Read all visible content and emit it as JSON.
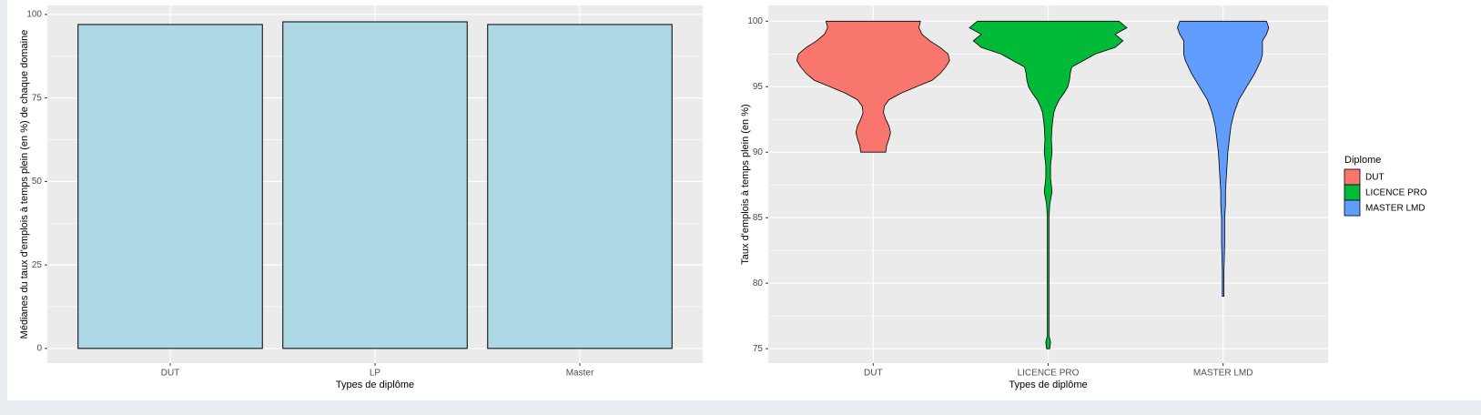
{
  "chart_data": [
    {
      "type": "bar",
      "x_label": "Types de diplôme",
      "y_label": "Médianes du taux d'emplois à temps plein (en %) de chaque domaine",
      "categories": [
        "DUT",
        "LP",
        "Master"
      ],
      "values": [
        97.0,
        97.8,
        97.0
      ],
      "color": "#add8e6",
      "ylim": [
        -4.4,
        102.7
      ],
      "yticks": [
        0,
        25,
        50,
        75,
        100
      ],
      "grid": true
    },
    {
      "type": "violin",
      "x_label": "Types de diplôme",
      "y_label": "Taux d'emplois à temps plein (en %)",
      "legend_title": "Diplome",
      "legend_position": "right",
      "ylim": [
        73.9,
        101.2
      ],
      "yticks": [
        75,
        80,
        85,
        90,
        95,
        100
      ],
      "grid": true,
      "series": [
        {
          "name": "DUT",
          "color": "#F8766D",
          "y": [
            90,
            90.5,
            91,
            91.5,
            92,
            92.5,
            93,
            93.5,
            94,
            94.5,
            95,
            95.5,
            96,
            96.5,
            97,
            97.5,
            98,
            98.5,
            99,
            99.5,
            100
          ],
          "width": [
            0.16,
            0.17,
            0.2,
            0.22,
            0.2,
            0.16,
            0.13,
            0.14,
            0.2,
            0.35,
            0.55,
            0.75,
            0.85,
            0.92,
            0.97,
            0.95,
            0.85,
            0.72,
            0.62,
            0.58,
            0.6
          ]
        },
        {
          "name": "LICENCE PRO",
          "color": "#00BA38",
          "y": [
            75,
            75.5,
            76,
            80,
            85,
            86,
            87,
            88,
            89,
            90,
            91,
            92,
            93,
            93.5,
            94,
            94.5,
            95,
            95.5,
            96,
            96.5,
            97,
            97.5,
            98,
            98.5,
            99,
            99.5,
            100
          ],
          "width": [
            0.02,
            0.03,
            0.01,
            0.01,
            0.01,
            0.02,
            0.05,
            0.03,
            0.03,
            0.05,
            0.04,
            0.05,
            0.07,
            0.1,
            0.14,
            0.2,
            0.25,
            0.27,
            0.28,
            0.3,
            0.45,
            0.6,
            0.85,
            0.95,
            0.85,
            1.0,
            0.9
          ]
        },
        {
          "name": "MASTER LMD",
          "color": "#619CFF",
          "y": [
            79,
            80,
            81,
            83,
            85,
            86,
            87,
            88,
            89,
            90,
            91,
            92,
            93,
            94,
            95,
            96,
            97,
            97.5,
            98,
            98.5,
            99,
            99.5,
            100
          ],
          "width": [
            0.01,
            0.01,
            0.01,
            0.02,
            0.02,
            0.03,
            0.03,
            0.04,
            0.05,
            0.06,
            0.08,
            0.1,
            0.14,
            0.2,
            0.3,
            0.4,
            0.48,
            0.5,
            0.5,
            0.5,
            0.55,
            0.58,
            0.55
          ]
        }
      ]
    }
  ]
}
